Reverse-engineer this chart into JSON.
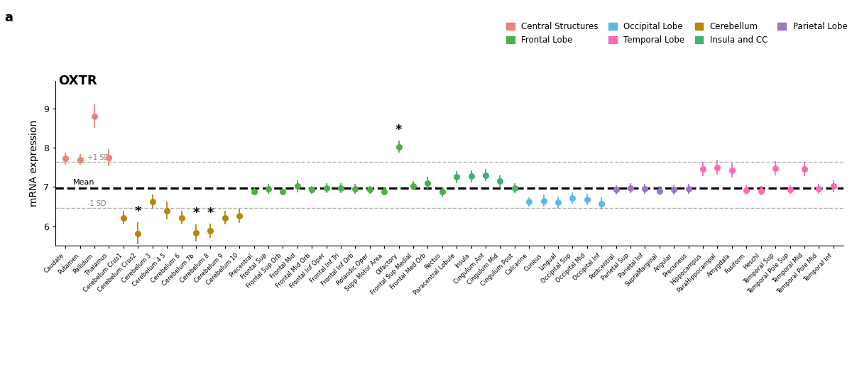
{
  "title": "OXTR",
  "ylabel": "mRNA expression",
  "mean_line": 6.975,
  "plus_sd": 7.63,
  "minus_sd": 6.47,
  "categories": [
    "Caudate",
    "Putamen",
    "Pallidum",
    "Thalamus",
    "Cerebelum Crus1",
    "Cerebelum Crus2",
    "Cerebelum 3",
    "Cerebelum 4 5",
    "Cerebelum 6",
    "Cerebelum 7b",
    "Cerebelum 8",
    "Cerebelum 9",
    "Cerebelum 10",
    "Precentral",
    "Frontal Sup",
    "Frontal Sup Orb",
    "Frontal Mid",
    "Frontal Mid Orb",
    "Frontal Inf Oper",
    "Frontal Inf Tri",
    "Frontal Inf Orb",
    "Rolandic Oper",
    "Supp Motor Area",
    "Olfactory",
    "Frontal Sup Medial",
    "Frontal Med Orb",
    "Rectus",
    "Paracentral Lobule",
    "Insula",
    "Cingulum Ant",
    "Cingulum Mid",
    "Cingulum Post",
    "Calcarine",
    "Cuneus",
    "Lingual",
    "Occipital Sup",
    "Occipital Mid",
    "Occipital Inf",
    "Postcentral",
    "Parietal Sup",
    "Parietal Inf",
    "SupraMarginal",
    "Angular",
    "Precuneus",
    "Hippocampus",
    "ParaHippocampal",
    "Amygdala",
    "Fusiform",
    "Heschl",
    "Temporal Sup",
    "Temporal Pole Sup",
    "Temporal Mid",
    "Temporal Pole Mid",
    "Temporal Inf"
  ],
  "values": [
    7.72,
    7.7,
    8.8,
    7.75,
    6.22,
    5.82,
    6.62,
    6.4,
    6.22,
    5.83,
    5.88,
    6.22,
    6.27,
    6.88,
    6.95,
    6.88,
    7.02,
    6.93,
    6.97,
    6.97,
    6.95,
    6.93,
    6.88,
    8.02,
    7.03,
    7.1,
    6.88,
    7.25,
    7.27,
    7.3,
    7.15,
    6.97,
    6.62,
    6.65,
    6.6,
    6.72,
    6.68,
    6.58,
    6.93,
    6.97,
    6.95,
    6.9,
    6.93,
    6.95,
    7.45,
    7.5,
    7.42,
    6.92,
    6.9,
    7.48,
    6.93,
    7.45,
    6.95,
    7.02
  ],
  "errors": [
    0.15,
    0.13,
    0.3,
    0.22,
    0.18,
    0.28,
    0.18,
    0.22,
    0.18,
    0.22,
    0.18,
    0.18,
    0.18,
    0.1,
    0.12,
    0.1,
    0.15,
    0.1,
    0.12,
    0.12,
    0.12,
    0.1,
    0.1,
    0.15,
    0.12,
    0.15,
    0.12,
    0.15,
    0.15,
    0.15,
    0.15,
    0.12,
    0.12,
    0.15,
    0.15,
    0.15,
    0.15,
    0.15,
    0.12,
    0.12,
    0.12,
    0.12,
    0.12,
    0.12,
    0.18,
    0.18,
    0.18,
    0.12,
    0.12,
    0.18,
    0.12,
    0.18,
    0.12,
    0.15
  ],
  "colors": [
    "#F08080",
    "#F08080",
    "#F08080",
    "#F08080",
    "#B8860B",
    "#B8860B",
    "#B8860B",
    "#B8860B",
    "#B8860B",
    "#B8860B",
    "#B8860B",
    "#B8860B",
    "#B8860B",
    "#4DAF4A",
    "#4DAF4A",
    "#4DAF4A",
    "#4DAF4A",
    "#4DAF4A",
    "#4DAF4A",
    "#4DAF4A",
    "#4DAF4A",
    "#4DAF4A",
    "#4DAF4A",
    "#4DAF4A",
    "#4DAF4A",
    "#4DAF4A",
    "#4DAF4A",
    "#3CB371",
    "#3CB371",
    "#3CB371",
    "#3CB371",
    "#3CB371",
    "#5DB8E8",
    "#5DB8E8",
    "#5DB8E8",
    "#5DB8E8",
    "#5DB8E8",
    "#5DB8E8",
    "#9B77C7",
    "#9B77C7",
    "#9B77C7",
    "#9B77C7",
    "#9B77C7",
    "#9B77C7",
    "#FF69B4",
    "#FF69B4",
    "#FF69B4",
    "#FF69B4",
    "#FF69B4",
    "#FF69B4",
    "#FF69B4",
    "#FF69B4",
    "#FF69B4",
    "#FF69B4"
  ],
  "star_indices": [
    5,
    9,
    10,
    23
  ],
  "legend_entries_row1": [
    {
      "label": "Central Structures",
      "color": "#F08080"
    },
    {
      "label": "Frontal Lobe",
      "color": "#4DAF4A"
    },
    {
      "label": "Occipital Lobe",
      "color": "#5DB8E8"
    },
    {
      "label": "Temporal Lobe",
      "color": "#FF69B4"
    }
  ],
  "legend_entries_row2": [
    {
      "label": "Cerebellum",
      "color": "#B8860B"
    },
    {
      "label": "Insula and CC",
      "color": "#3CB371"
    },
    {
      "label": "Parietal Lobe",
      "color": "#9B77C7"
    }
  ],
  "ylim": [
    5.5,
    9.7
  ],
  "yticks": [
    6,
    7,
    8,
    9
  ],
  "panel_label": "a"
}
